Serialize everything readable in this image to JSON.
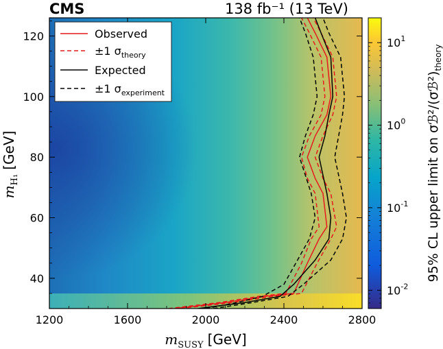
{
  "chart_data": {
    "type": "heatmap",
    "experiment": "CMS",
    "lumi_label": "138 fb⁻¹ (13 TeV)",
    "xlabel_math": "m",
    "xlabel_sub": "SUSY",
    "xlabel_unit": "[GeV]",
    "ylabel_math": "m",
    "ylabel_sub": "H₁",
    "ylabel_unit": "[GeV]",
    "xlim": [
      1200,
      2800
    ],
    "ylim": [
      30,
      126
    ],
    "xticks": [
      "1200",
      "1600",
      "2000",
      "2400",
      "2800"
    ],
    "xtick_values": [
      1200,
      1600,
      2000,
      2400,
      2800
    ],
    "yticks": [
      "40",
      "60",
      "80",
      "100",
      "120"
    ],
    "ytick_values": [
      40,
      60,
      80,
      100,
      120
    ],
    "colorbar": {
      "label": "95% CL upper limit on σℬ²/(σℬ²)",
      "label_sub": "theory",
      "scale": "log",
      "range": [
        0.006,
        20
      ],
      "ticks": [
        {
          "value": 0.01,
          "base": "10",
          "exp": "-2"
        },
        {
          "value": 0.1,
          "base": "10",
          "exp": "-1"
        },
        {
          "value": 1,
          "base": "10",
          "exp": "0"
        },
        {
          "value": 10,
          "base": "10",
          "exp": "1"
        }
      ]
    },
    "legend": [
      {
        "label": "Observed",
        "style": "solid",
        "color": "#e41a1c"
      },
      {
        "label": "±1 σ",
        "sub": "theory",
        "style": "dashed",
        "color": "#e41a1c"
      },
      {
        "label": "Expected",
        "style": "solid",
        "color": "#000000"
      },
      {
        "label": "±1 σ",
        "sub": "experiment",
        "style": "dashed",
        "color": "#000000"
      }
    ],
    "series": [
      {
        "name": "Observed",
        "style": "solid",
        "color": "#e41a1c",
        "points": [
          [
            1840,
            30
          ],
          [
            2100,
            32
          ],
          [
            2300,
            34
          ],
          [
            2450,
            35
          ],
          [
            2520,
            45
          ],
          [
            2580,
            53
          ],
          [
            2620,
            57
          ],
          [
            2600,
            68
          ],
          [
            2560,
            73
          ],
          [
            2520,
            80
          ],
          [
            2560,
            87
          ],
          [
            2620,
            94
          ],
          [
            2640,
            100
          ],
          [
            2620,
            113
          ],
          [
            2560,
            121
          ],
          [
            2520,
            126
          ]
        ]
      },
      {
        "name": "Observed -1σ theory",
        "style": "dashed",
        "color": "#e41a1c",
        "points": [
          [
            1810,
            30
          ],
          [
            2070,
            32
          ],
          [
            2270,
            34
          ],
          [
            2410,
            35
          ],
          [
            2490,
            45
          ],
          [
            2540,
            53
          ],
          [
            2580,
            57
          ],
          [
            2560,
            68
          ],
          [
            2520,
            73
          ],
          [
            2490,
            80
          ],
          [
            2530,
            87
          ],
          [
            2590,
            94
          ],
          [
            2610,
            100
          ],
          [
            2590,
            113
          ],
          [
            2530,
            121
          ],
          [
            2490,
            126
          ]
        ]
      },
      {
        "name": "Observed +1σ theory",
        "style": "dashed",
        "color": "#e41a1c",
        "points": [
          [
            1870,
            30
          ],
          [
            2140,
            32
          ],
          [
            2340,
            34
          ],
          [
            2490,
            35
          ],
          [
            2570,
            45
          ],
          [
            2640,
            53
          ],
          [
            2670,
            57
          ],
          [
            2640,
            68
          ],
          [
            2600,
            73
          ],
          [
            2560,
            80
          ],
          [
            2600,
            87
          ],
          [
            2650,
            94
          ],
          [
            2670,
            100
          ],
          [
            2650,
            113
          ],
          [
            2590,
            121
          ],
          [
            2550,
            126
          ]
        ]
      },
      {
        "name": "Expected",
        "style": "solid",
        "color": "#000000",
        "points": [
          [
            1960,
            30
          ],
          [
            2200,
            32
          ],
          [
            2380,
            34
          ],
          [
            2450,
            38
          ],
          [
            2560,
            46
          ],
          [
            2630,
            53
          ],
          [
            2640,
            60
          ],
          [
            2620,
            68
          ],
          [
            2600,
            74
          ],
          [
            2580,
            80
          ],
          [
            2610,
            87
          ],
          [
            2630,
            94
          ],
          [
            2650,
            100
          ],
          [
            2640,
            113
          ],
          [
            2590,
            121
          ],
          [
            2560,
            126
          ]
        ]
      },
      {
        "name": "Expected -1σ experiment",
        "style": "dashed",
        "color": "#000000",
        "points": [
          [
            2000,
            30
          ],
          [
            2160,
            32
          ],
          [
            2290,
            34
          ],
          [
            2400,
            38
          ],
          [
            2470,
            46
          ],
          [
            2530,
            53
          ],
          [
            2560,
            60
          ],
          [
            2540,
            68
          ],
          [
            2510,
            74
          ],
          [
            2480,
            80
          ],
          [
            2510,
            87
          ],
          [
            2550,
            94
          ],
          [
            2570,
            100
          ],
          [
            2550,
            113
          ],
          [
            2510,
            121
          ],
          [
            2480,
            126
          ]
        ]
      },
      {
        "name": "Expected +1σ experiment",
        "style": "dashed",
        "color": "#000000",
        "points": [
          [
            2040,
            30
          ],
          [
            2240,
            32
          ],
          [
            2420,
            34
          ],
          [
            2500,
            38
          ],
          [
            2640,
            46
          ],
          [
            2700,
            53
          ],
          [
            2720,
            60
          ],
          [
            2700,
            68
          ],
          [
            2680,
            74
          ],
          [
            2660,
            80
          ],
          [
            2680,
            87
          ],
          [
            2700,
            94
          ],
          [
            2710,
            100
          ],
          [
            2690,
            113
          ],
          [
            2630,
            121
          ],
          [
            2600,
            126
          ]
        ]
      }
    ]
  }
}
